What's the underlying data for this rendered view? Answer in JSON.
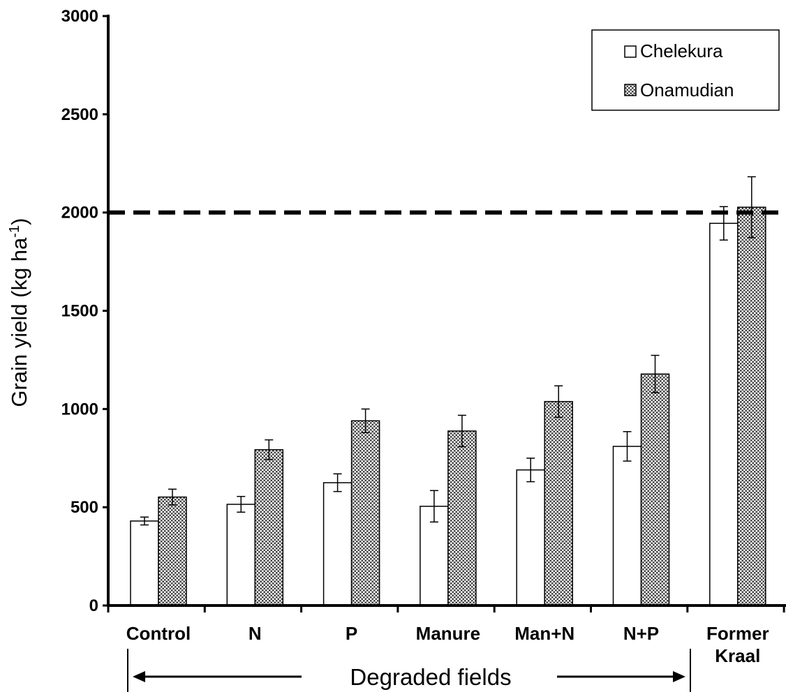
{
  "chart_data": {
    "type": "bar",
    "ylabel_main": "Grain yield (kg ha",
    "ylabel_sup": "-1",
    "ylabel_close": ")",
    "ylim": [
      0,
      3000
    ],
    "yticks": [
      0,
      500,
      1000,
      1500,
      2000,
      2500,
      3000
    ],
    "categories": [
      [
        "Control"
      ],
      [
        "N"
      ],
      [
        "P"
      ],
      [
        "Manure"
      ],
      [
        "Man+N"
      ],
      [
        "N+P"
      ],
      [
        "Former",
        "Kraal"
      ]
    ],
    "series": [
      {
        "name": "Chelekura",
        "fill": "#ffffff",
        "values": [
          430,
          515,
          625,
          505,
          690,
          810,
          1945
        ],
        "errors": [
          20,
          40,
          45,
          80,
          60,
          75,
          85
        ]
      },
      {
        "name": "Onamudian",
        "fill": "pattern",
        "values": [
          552,
          793,
          940,
          888,
          1038,
          1178,
          2027
        ],
        "errors": [
          40,
          50,
          60,
          80,
          80,
          95,
          155
        ]
      }
    ],
    "reference_line": 2000,
    "legend_position": "top-right",
    "group_annotation": "Degraded fields",
    "grid": false
  }
}
